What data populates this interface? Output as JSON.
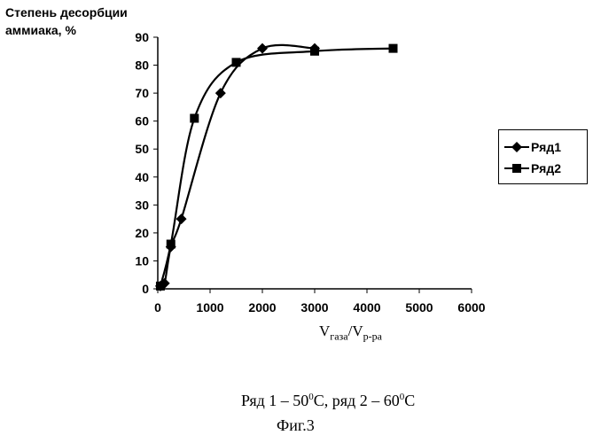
{
  "chart_data": {
    "type": "line",
    "ylabel_line1": "Степень десорбции",
    "ylabel_line2": "аммиака, %",
    "xlabel_main": "V",
    "xlabel_sub1": "газа",
    "xlabel_sep": "/V",
    "xlabel_sub2": "р-ра",
    "xlim": [
      0,
      6000
    ],
    "ylim": [
      0,
      90
    ],
    "x_ticks": [
      "0",
      "1000",
      "2000",
      "3000",
      "4000",
      "5000",
      "6000"
    ],
    "y_ticks": [
      "0",
      "10",
      "20",
      "30",
      "40",
      "50",
      "60",
      "70",
      "80",
      "90"
    ],
    "grid": false,
    "legend_position": "right",
    "series": [
      {
        "name": "Ряд1",
        "marker": "diamond",
        "x": [
          50,
          130,
          250,
          450,
          1200,
          2000,
          3000
        ],
        "y": [
          1,
          2,
          15,
          25,
          70,
          86,
          86
        ]
      },
      {
        "name": "Ряд2",
        "marker": "square",
        "x": [
          50,
          250,
          700,
          1500,
          3000,
          4500
        ],
        "y": [
          1,
          16,
          61,
          81,
          85,
          86
        ]
      }
    ]
  },
  "caption": {
    "part1": "Ряд 1 – 50",
    "sup1": "0",
    "part2": "С, ряд 2 – 60",
    "sup2": "0",
    "part3": "С"
  },
  "figure_label": "Фиг.3"
}
